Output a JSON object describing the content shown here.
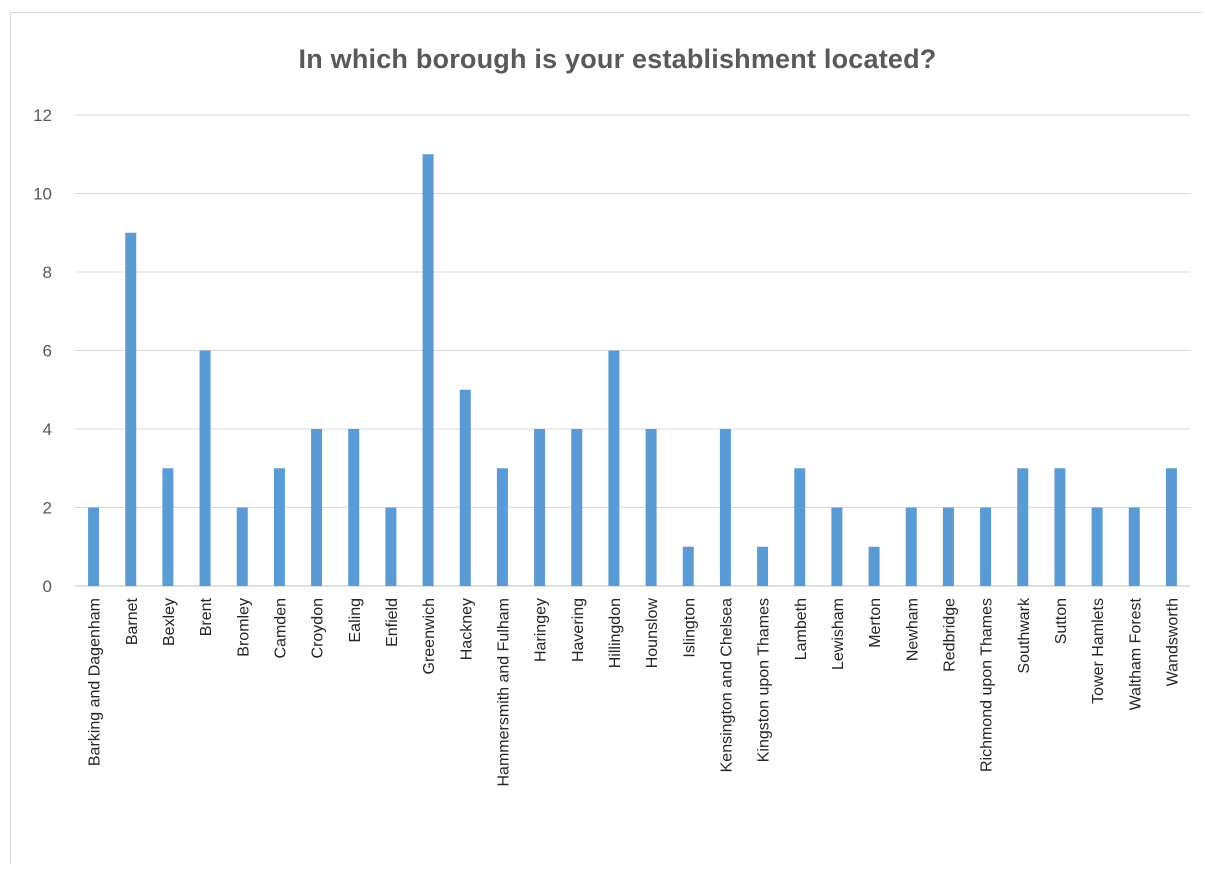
{
  "chart_data": {
    "type": "bar",
    "title": "In which borough is your establishment located?",
    "xlabel": "",
    "ylabel": "",
    "ylim": [
      0,
      12
    ],
    "yticks": [
      0,
      2,
      4,
      6,
      8,
      10,
      12
    ],
    "grid": true,
    "legend": "none",
    "bar_color": "#5b9bd5",
    "categories": [
      "Barking and Dagenham",
      "Barnet",
      "Bexley",
      "Brent",
      "Bromley",
      "Camden",
      "Croydon",
      "Ealing",
      "Enfield",
      "Greenwich",
      "Hackney",
      "Hammersmith and Fulham",
      "Haringey",
      "Havering",
      "Hillingdon",
      "Hounslow",
      "Islington",
      "Kensington and Chelsea",
      "Kingston upon Thames",
      "Lambeth",
      "Lewisham",
      "Merton",
      "Newham",
      "Redbridge",
      "Richmond upon Thames",
      "Southwark",
      "Sutton",
      "Tower Hamlets",
      "Waltham Forest",
      "Wandsworth"
    ],
    "values": [
      2,
      9,
      3,
      6,
      2,
      3,
      4,
      4,
      2,
      11,
      5,
      3,
      4,
      4,
      6,
      4,
      1,
      4,
      1,
      3,
      2,
      1,
      2,
      2,
      2,
      3,
      3,
      2,
      2,
      3
    ]
  }
}
